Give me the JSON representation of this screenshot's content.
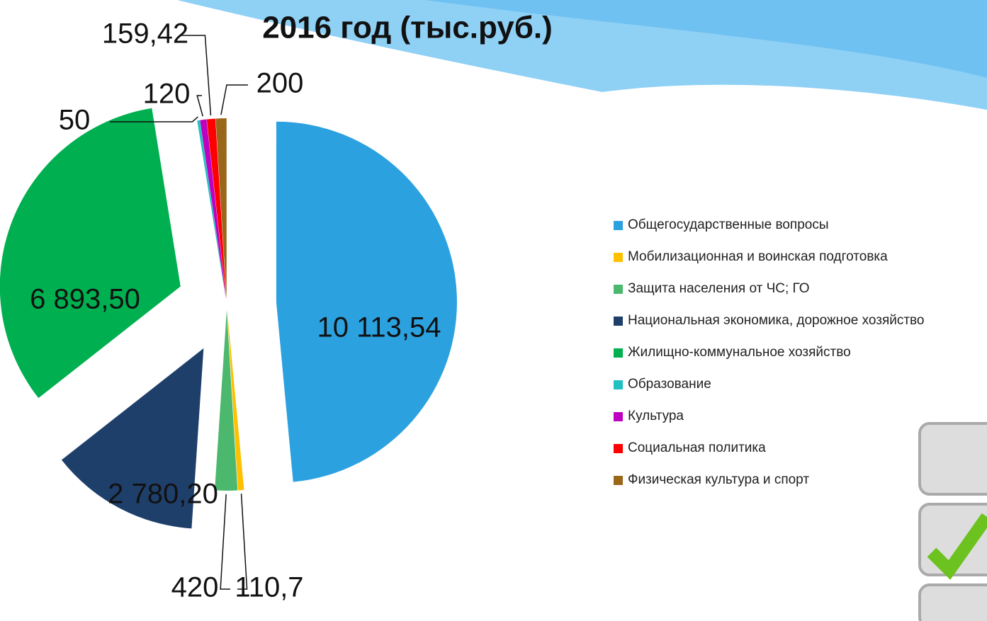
{
  "chart_data": {
    "type": "pie",
    "title": "2016 год (тыс.руб.)",
    "categories": [
      "Общегосударственные вопросы",
      "Мобилизационная и воинская подготовка",
      "Защита населения от ЧС; ГО",
      "Национальная экономика, дорожное хозяйство",
      "Жилищно-коммунальное хозяйство",
      "Образование",
      "Культура",
      "Социальная политика",
      "Физическая культура и спорт"
    ],
    "values": [
      10113.54,
      110.7,
      420,
      2780.2,
      6893.5,
      50,
      120,
      159.42,
      200
    ],
    "value_labels": [
      "10 113,54",
      "110,7",
      "420",
      "2 780,20",
      "6 893,50",
      "50",
      "120",
      "159,42",
      "200"
    ],
    "colors": [
      "#2ca1e0",
      "#ffc000",
      "#4cb86e",
      "#1f3f6b",
      "#00b050",
      "#22c0c0",
      "#c000c0",
      "#ff0000",
      "#99661a"
    ],
    "legend": "right"
  }
}
